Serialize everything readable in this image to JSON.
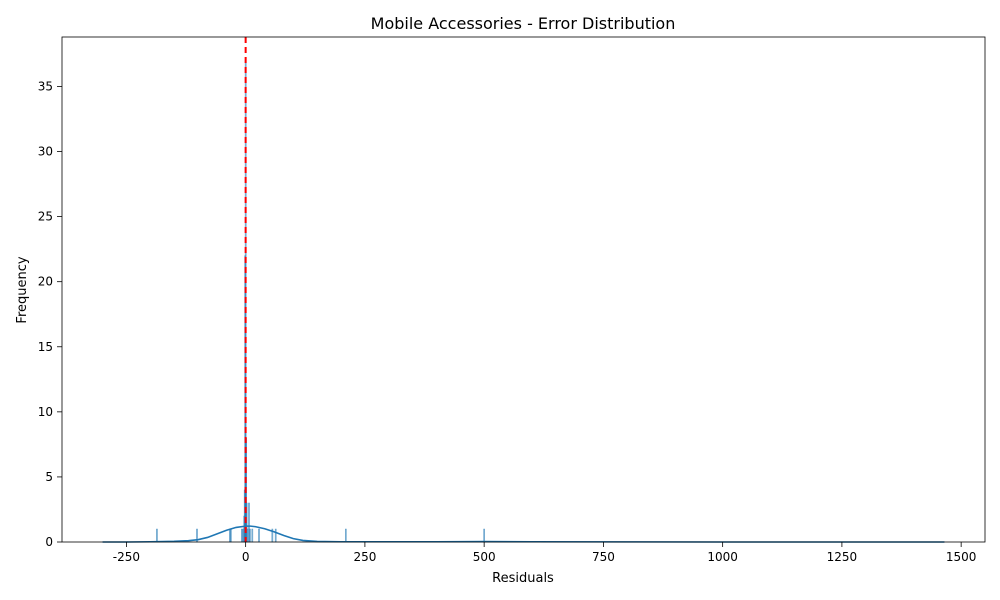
{
  "chart_data": {
    "type": "histogram",
    "title": "Mobile Accessories - Error Distribution",
    "xlabel": "Residuals",
    "ylabel": "Frequency",
    "xlim": [
      -385,
      1550
    ],
    "ylim": [
      0,
      38.8
    ],
    "xticks": [
      -250,
      0,
      250,
      500,
      750,
      1000,
      1250,
      1500
    ],
    "yticks": [
      0,
      5,
      10,
      15,
      20,
      25,
      30,
      35
    ],
    "bar_color": "#1f77b4",
    "kde_color": "#1f77b4",
    "reference_line": {
      "x": 0,
      "color": "#ff0000",
      "style": "dashed"
    },
    "bins": [
      {
        "x": -186,
        "count": 1
      },
      {
        "x": -102,
        "count": 1
      },
      {
        "x": -33,
        "count": 1
      },
      {
        "x": -31,
        "count": 1
      },
      {
        "x": -8,
        "count": 1
      },
      {
        "x": -5,
        "count": 1
      },
      {
        "x": -3,
        "count": 2
      },
      {
        "x": -2,
        "count": 4
      },
      {
        "x": -1,
        "count": 22
      },
      {
        "x": 0,
        "count": 37
      },
      {
        "x": 1,
        "count": 8
      },
      {
        "x": 2,
        "count": 3
      },
      {
        "x": 4,
        "count": 1
      },
      {
        "x": 7,
        "count": 3
      },
      {
        "x": 9,
        "count": 1
      },
      {
        "x": 14,
        "count": 1
      },
      {
        "x": 28,
        "count": 1
      },
      {
        "x": 56,
        "count": 1
      },
      {
        "x": 63,
        "count": 1
      },
      {
        "x": 210,
        "count": 1
      },
      {
        "x": 500,
        "count": 1
      }
    ],
    "kde": {
      "x": [
        -300,
        -250,
        -200,
        -150,
        -120,
        -100,
        -80,
        -60,
        -40,
        -20,
        0,
        10,
        20,
        40,
        60,
        80,
        100,
        120,
        150,
        200,
        250,
        300,
        400,
        500,
        600,
        800,
        1000,
        1200,
        1465
      ],
      "y": [
        0.0,
        0.0,
        0.02,
        0.05,
        0.1,
        0.18,
        0.35,
        0.62,
        0.9,
        1.12,
        1.22,
        1.22,
        1.18,
        1.02,
        0.78,
        0.5,
        0.26,
        0.12,
        0.04,
        0.02,
        0.02,
        0.02,
        0.02,
        0.03,
        0.02,
        0.01,
        0.0,
        0.0,
        0.0
      ]
    }
  }
}
